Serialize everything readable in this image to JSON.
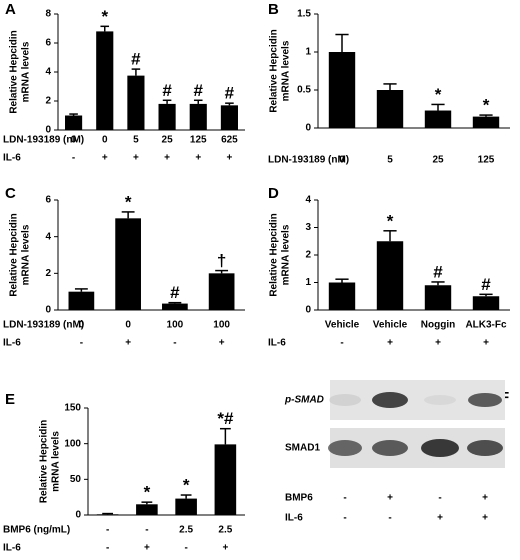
{
  "chart_data": [
    {
      "type": "bar",
      "panel_label": "A",
      "ylabel": [
        "Relative Hepcidin",
        "mRNA levels"
      ],
      "ylim": [
        0,
        8
      ],
      "yticks": [
        0,
        2,
        4,
        6,
        8
      ],
      "color": "#000000",
      "values": [
        1.0,
        6.8,
        3.75,
        1.8,
        1.8,
        1.7
      ],
      "errors": [
        0.1,
        0.35,
        0.45,
        0.25,
        0.25,
        0.15
      ],
      "annotations": [
        null,
        "*",
        "#",
        "#",
        "#",
        "#"
      ],
      "factor_rows": [
        {
          "name": "LDN-193189 (nM)",
          "labels": [
            "0",
            "0",
            "5",
            "25",
            "125",
            "625"
          ]
        },
        {
          "name": "IL-6",
          "labels": [
            "-",
            "+",
            "+",
            "+",
            "+",
            "+"
          ]
        }
      ]
    },
    {
      "type": "bar",
      "panel_label": "B",
      "ylabel": [
        "Relative Hepcidin",
        "mRNA levels"
      ],
      "ylim": [
        0,
        1.5
      ],
      "yticks": [
        0,
        0.5,
        1,
        1.5
      ],
      "color": "#000000",
      "values": [
        1.0,
        0.5,
        0.23,
        0.15
      ],
      "errors": [
        0.23,
        0.08,
        0.08,
        0.02
      ],
      "annotations": [
        null,
        null,
        "*",
        "*"
      ],
      "factor_rows": [
        {
          "name": "LDN-193189 (nM)",
          "labels": [
            "0",
            "5",
            "25",
            "125"
          ]
        }
      ]
    },
    {
      "type": "bar",
      "panel_label": "C",
      "ylabel": [
        "Relative Hepcidin",
        "mRNA levels"
      ],
      "ylim": [
        0,
        6
      ],
      "yticks": [
        0,
        2,
        4,
        6
      ],
      "color": "#000000",
      "values": [
        1.0,
        5.0,
        0.35,
        2.0
      ],
      "errors": [
        0.15,
        0.35,
        0.05,
        0.15
      ],
      "annotations": [
        null,
        "*",
        "#",
        "†"
      ],
      "factor_rows": [
        {
          "name": "LDN-193189 (nM)",
          "labels": [
            "0",
            "0",
            "100",
            "100"
          ]
        },
        {
          "name": "IL-6",
          "labels": [
            "-",
            "+",
            "-",
            "+"
          ]
        }
      ]
    },
    {
      "type": "bar",
      "panel_label": "D",
      "ylabel": [
        "Relative Hepcidin",
        "mRNA levels"
      ],
      "ylim": [
        0,
        4
      ],
      "yticks": [
        0,
        1,
        2,
        3,
        4
      ],
      "color": "#000000",
      "values": [
        1.0,
        2.5,
        0.9,
        0.5
      ],
      "errors": [
        0.12,
        0.38,
        0.12,
        0.07
      ],
      "annotations": [
        null,
        "*",
        "#",
        "#"
      ],
      "factor_rows": [
        {
          "labels": [
            "Vehicle",
            "Vehicle",
            "Noggin",
            "ALK3-Fc"
          ]
        },
        {
          "name": "IL-6",
          "labels": [
            "-",
            "+",
            "+",
            "+"
          ]
        }
      ]
    },
    {
      "type": "bar",
      "panel_label": "E",
      "ylabel": [
        "Relative Hepcidin",
        "mRNA levels"
      ],
      "ylim": [
        0,
        150
      ],
      "yticks": [
        0,
        50,
        100,
        150
      ],
      "color": "#000000",
      "values": [
        1,
        15,
        23,
        99
      ],
      "errors": [
        1,
        3,
        5,
        22
      ],
      "annotations": [
        null,
        "*",
        "*",
        "*#"
      ],
      "factor_rows": [
        {
          "name": "BMP6 (ng/mL)",
          "labels": [
            "-",
            "-",
            "2.5",
            "2.5"
          ]
        },
        {
          "name": "IL-6",
          "labels": [
            "-",
            "+",
            "-",
            "+"
          ]
        }
      ]
    }
  ],
  "blot_panel": {
    "panel_label": "F",
    "bands": [
      "p-SMAD",
      "SMAD1"
    ],
    "factor_rows": [
      {
        "name": "BMP6",
        "labels": [
          "-",
          "+",
          "-",
          "+"
        ]
      },
      {
        "name": "IL-6",
        "labels": [
          "-",
          "-",
          "+",
          "+"
        ]
      }
    ]
  }
}
